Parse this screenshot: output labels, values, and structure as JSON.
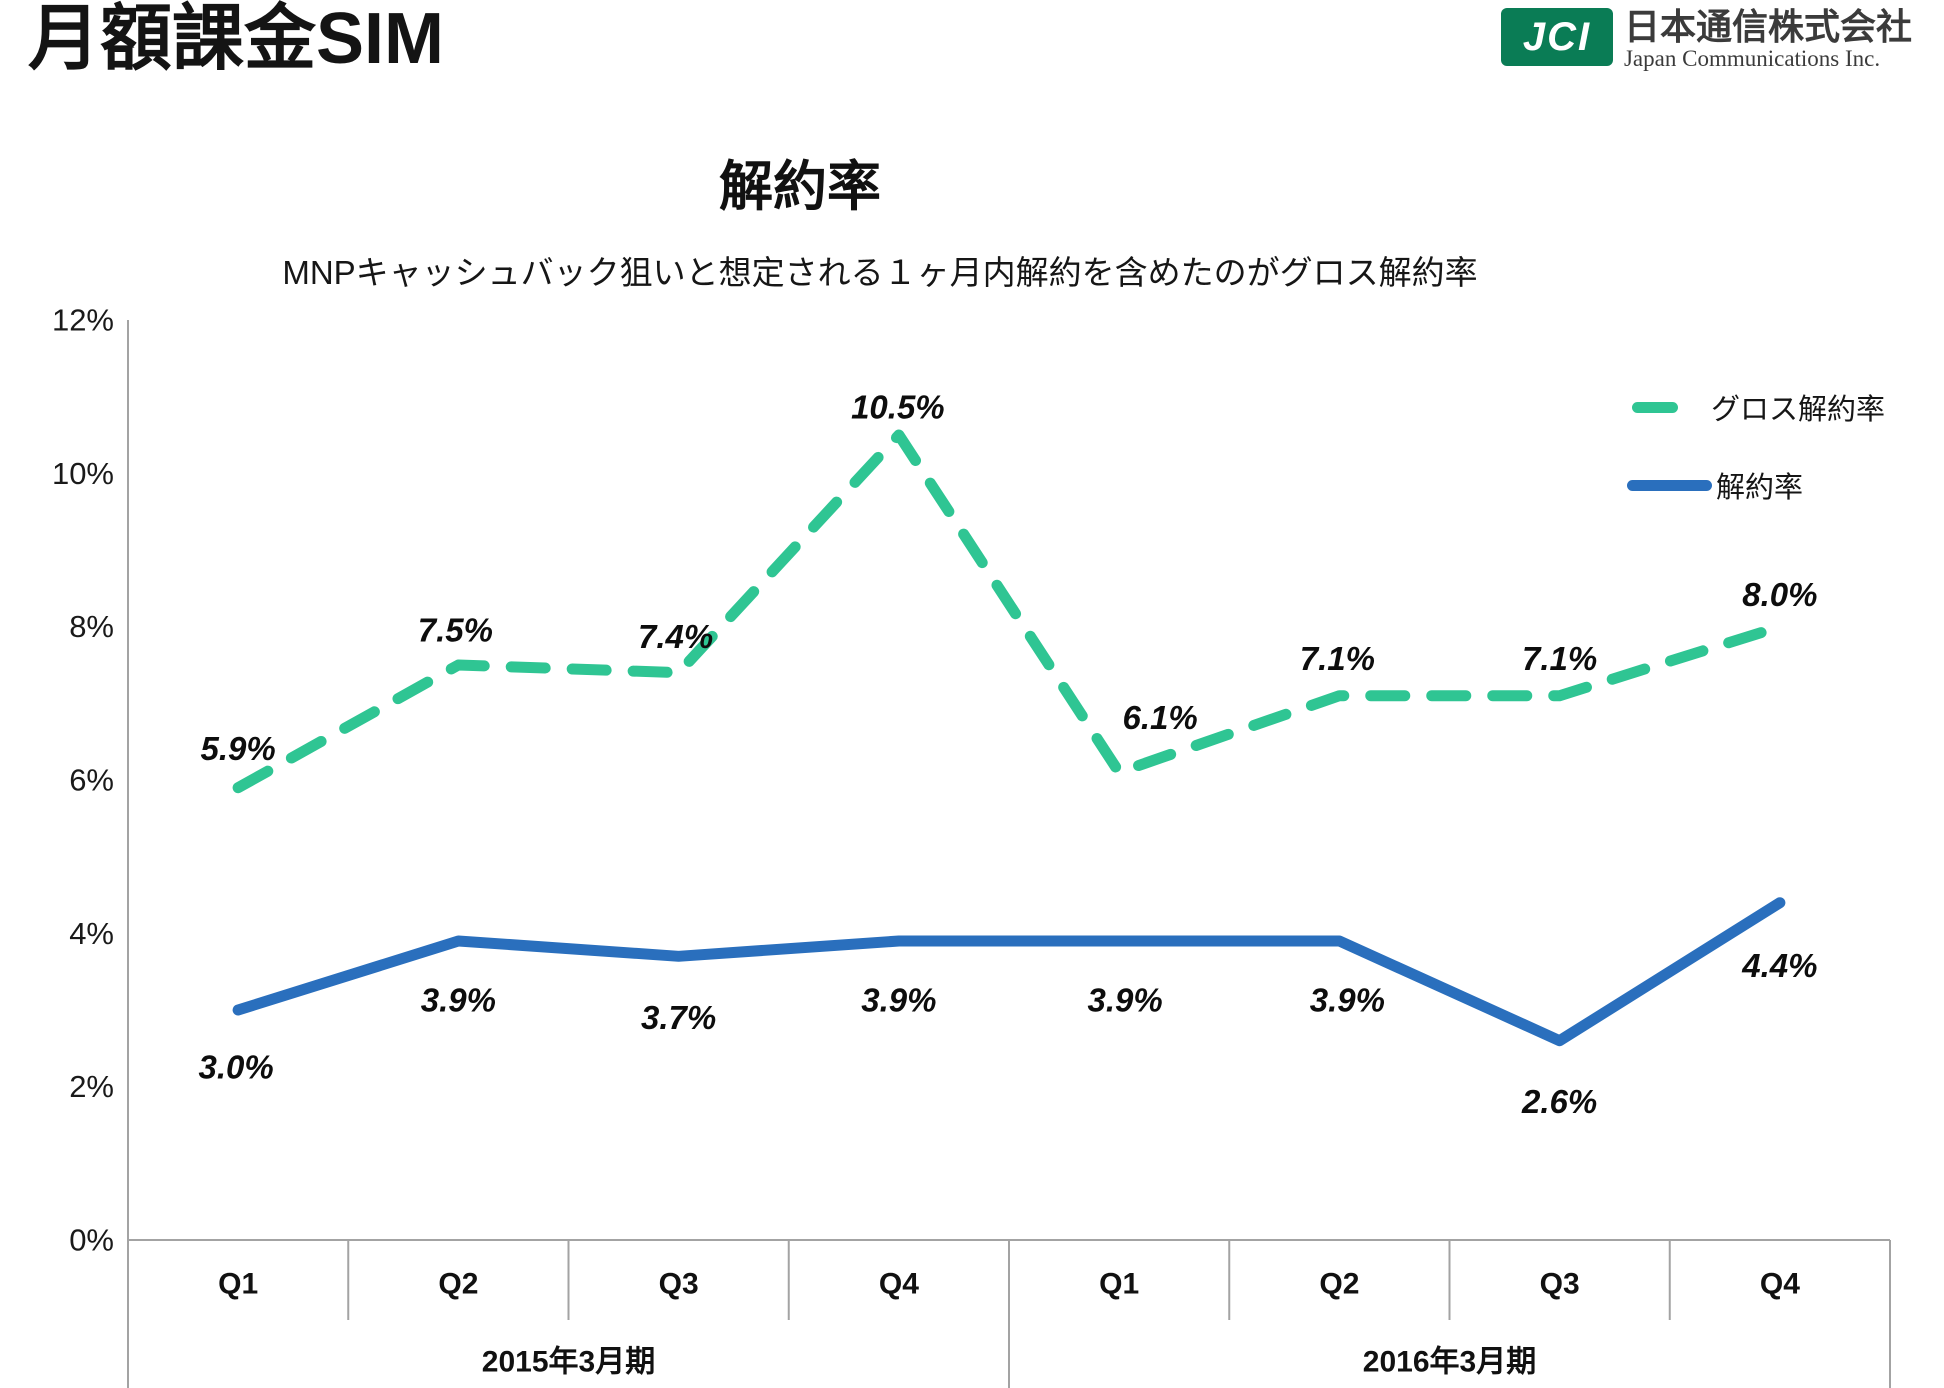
{
  "header": {
    "title": "月額課金SIM",
    "logo": {
      "mark": "JCI",
      "mark_color": "#0a7c55",
      "company_jp": "日本通信株式会社",
      "company_en": "Japan Communications Inc."
    }
  },
  "chart": {
    "title": "解約率",
    "subtitle": "MNPキャッシュバック狙いと想定される１ヶ月内解約を含めたのがグロス解約率"
  },
  "chart_data": {
    "type": "line",
    "categories": [
      "Q1",
      "Q2",
      "Q3",
      "Q4",
      "Q1",
      "Q2",
      "Q3",
      "Q4"
    ],
    "period_groups": [
      {
        "label": "2015年3月期",
        "span": 4
      },
      {
        "label": "2016年3月期",
        "span": 4
      }
    ],
    "series": [
      {
        "name": "グロス解約率",
        "line_style": "dashed",
        "color": "#2fc593",
        "values": [
          5.9,
          7.5,
          7.4,
          10.5,
          6.1,
          7.1,
          7.1,
          8.0
        ],
        "labels": [
          "5.9%",
          "7.5%",
          "7.4%",
          "10.5%",
          "6.1%",
          "7.1%",
          "7.1%",
          "8.0%"
        ]
      },
      {
        "name": "解約率",
        "line_style": "solid",
        "color": "#2a6fbd",
        "values": [
          3.0,
          3.9,
          3.7,
          3.9,
          3.9,
          3.9,
          2.6,
          4.4
        ],
        "labels": [
          "3.0%",
          "3.9%",
          "3.7%",
          "3.9%",
          "3.9%",
          "3.9%",
          "2.6%",
          "4.4%"
        ]
      }
    ],
    "ylim": [
      0,
      12
    ],
    "ytick_labels": [
      "0%",
      "2%",
      "4%",
      "6%",
      "8%",
      "10%",
      "12%"
    ],
    "grid": false,
    "legend_position": "top-right",
    "axis_color": "#a3a3a3",
    "label_offsets": [
      [
        [
          0,
          -39
        ],
        [
          -3,
          -35
        ],
        [
          -3,
          -36
        ],
        [
          -1,
          -28
        ],
        [
          41,
          -55
        ],
        [
          -2,
          -37
        ],
        [
          0,
          -37
        ],
        [
          0,
          -32
        ]
      ],
      [
        [
          -2,
          57
        ],
        [
          0,
          59
        ],
        [
          0,
          61
        ],
        [
          0,
          59
        ],
        [
          6,
          59
        ],
        [
          8,
          59
        ],
        [
          0,
          61
        ],
        [
          0,
          63
        ]
      ]
    ]
  }
}
